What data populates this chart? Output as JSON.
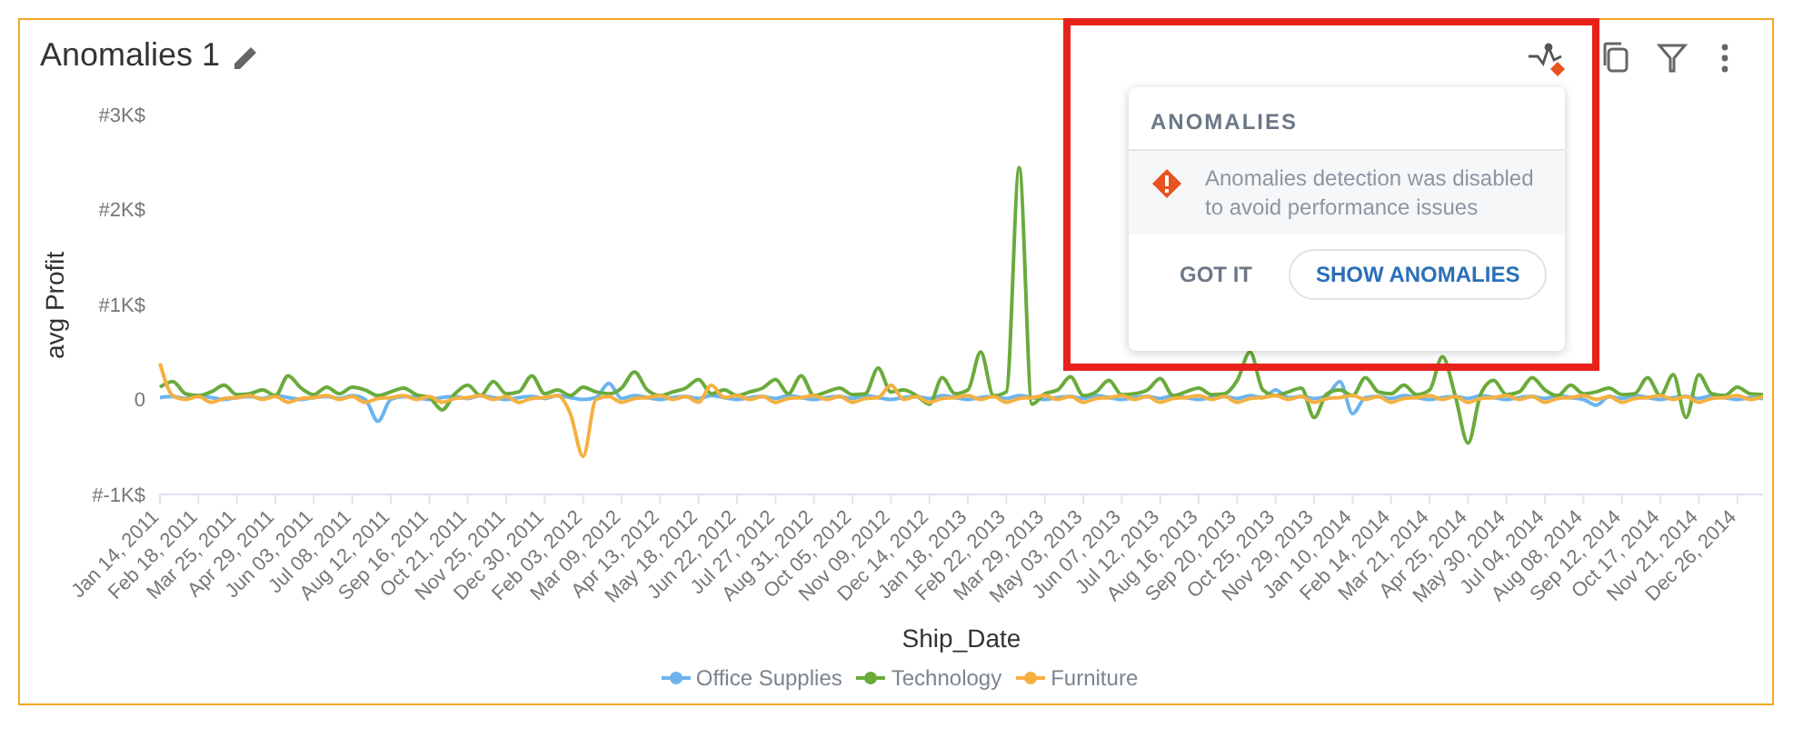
{
  "chart_data": {
    "type": "line",
    "title": "Anomalies 1",
    "xlabel": "Ship_Date",
    "ylabel": "avg Profit",
    "categories": [
      "Jan 14, 2011",
      null,
      null,
      "Feb 18, 2011",
      null,
      null,
      "Mar 25, 2011",
      null,
      null,
      "Apr 29, 2011",
      null,
      null,
      "Jun 03, 2011",
      null,
      null,
      "Jul 08, 2011",
      null,
      null,
      "Aug 12, 2011",
      null,
      null,
      "Sep 16, 2011",
      null,
      null,
      "Oct 21, 2011",
      null,
      null,
      "Nov 25, 2011",
      null,
      null,
      "Dec 30, 2011",
      null,
      null,
      "Feb 03, 2012",
      null,
      null,
      "Mar 09, 2012",
      null,
      null,
      "Apr 13, 2012",
      null,
      null,
      "May 18, 2012",
      null,
      null,
      "Jun 22, 2012",
      null,
      null,
      "Jul 27, 2012",
      null,
      null,
      "Aug 31, 2012",
      null,
      null,
      "Oct 05, 2012",
      null,
      null,
      "Nov 09, 2012",
      null,
      null,
      "Dec 14, 2012",
      null,
      null,
      "Jan 18, 2013",
      null,
      null,
      "Feb 22, 2013",
      null,
      null,
      "Mar 29, 2013",
      null,
      null,
      "May 03, 2013",
      null,
      null,
      "Jun 07, 2013",
      null,
      null,
      "Jul 12, 2013",
      null,
      null,
      "Aug 16, 2013",
      null,
      null,
      "Sep 20, 2013",
      null,
      null,
      "Oct 25, 2013",
      null,
      null,
      "Nov 29, 2013",
      null,
      null,
      "Jan 10, 2014",
      null,
      null,
      "Feb 14, 2014",
      null,
      null,
      "Mar 21, 2014",
      null,
      null,
      "Apr 25, 2014",
      null,
      null,
      "May 30, 2014",
      null,
      null,
      "Jul 04, 2014",
      null,
      null,
      "Aug 08, 2014",
      null,
      null,
      "Sep 12, 2014",
      null,
      null,
      "Oct 17, 2014",
      null,
      null,
      "Nov 21, 2014",
      null,
      null,
      "Dec 26, 2014",
      null,
      null
    ],
    "series": [
      {
        "name": "Office Supplies",
        "color": "#6cb4ee",
        "values": [
          20,
          30,
          10,
          40,
          20,
          0,
          20,
          30,
          10,
          40,
          20,
          0,
          20,
          30,
          10,
          40,
          0,
          -230,
          0,
          30,
          20,
          0,
          20,
          30,
          10,
          40,
          20,
          0,
          20,
          30,
          10,
          40,
          20,
          0,
          20,
          170,
          10,
          40,
          20,
          0,
          20,
          30,
          10,
          40,
          20,
          0,
          20,
          30,
          10,
          40,
          20,
          0,
          20,
          30,
          10,
          40,
          20,
          0,
          20,
          30,
          10,
          40,
          20,
          0,
          20,
          30,
          10,
          40,
          20,
          0,
          20,
          30,
          10,
          40,
          20,
          0,
          20,
          30,
          10,
          40,
          20,
          0,
          20,
          30,
          10,
          40,
          20,
          100,
          20,
          30,
          10,
          40,
          190,
          -150,
          20,
          30,
          10,
          40,
          20,
          0,
          20,
          30,
          10,
          40,
          20,
          0,
          20,
          30,
          10,
          40,
          20,
          0,
          -60,
          30,
          10,
          40,
          20,
          0,
          20,
          30,
          10,
          40,
          20,
          0,
          20,
          10
        ]
      },
      {
        "name": "Technology",
        "color": "#6aab3c",
        "values": [
          130,
          190,
          60,
          40,
          80,
          150,
          50,
          60,
          100,
          40,
          250,
          120,
          50,
          130,
          60,
          130,
          100,
          40,
          80,
          120,
          50,
          20,
          -110,
          60,
          150,
          40,
          190,
          60,
          80,
          250,
          60,
          100,
          40,
          130,
          80,
          60,
          120,
          290,
          100,
          40,
          80,
          120,
          210,
          60,
          100,
          40,
          80,
          120,
          210,
          60,
          250,
          40,
          80,
          120,
          50,
          60,
          330,
          80,
          100,
          40,
          -50,
          230,
          60,
          100,
          500,
          40,
          80,
          2440,
          -50,
          60,
          100,
          240,
          40,
          80,
          200,
          50,
          60,
          100,
          220,
          40,
          80,
          120,
          50,
          60,
          200,
          500,
          100,
          40,
          80,
          120,
          -190,
          60,
          100,
          40,
          230,
          80,
          60,
          150,
          50,
          100,
          450,
          40,
          -460,
          60,
          200,
          50,
          80,
          230,
          100,
          40,
          150,
          60,
          80,
          120,
          50,
          60,
          230,
          40,
          260,
          -190,
          260,
          60,
          40,
          130,
          60,
          50
        ]
      },
      {
        "name": "Furniture",
        "color": "#f5b041",
        "values": [
          380,
          40,
          0,
          30,
          -30,
          10,
          20,
          40,
          0,
          30,
          -30,
          10,
          20,
          40,
          0,
          30,
          -30,
          10,
          20,
          40,
          0,
          30,
          -30,
          10,
          20,
          40,
          0,
          30,
          -30,
          10,
          20,
          40,
          -150,
          -600,
          0,
          30,
          -30,
          10,
          20,
          40,
          0,
          30,
          -30,
          150,
          20,
          40,
          0,
          30,
          -30,
          10,
          20,
          40,
          0,
          30,
          -30,
          10,
          20,
          150,
          0,
          30,
          -30,
          10,
          20,
          40,
          0,
          30,
          -30,
          10,
          20,
          40,
          0,
          30,
          -30,
          10,
          20,
          40,
          0,
          30,
          -30,
          10,
          20,
          40,
          0,
          30,
          -30,
          10,
          20,
          40,
          0,
          30,
          -30,
          10,
          20,
          40,
          0,
          30,
          -30,
          10,
          20,
          40,
          0,
          30,
          -30,
          10,
          20,
          40,
          0,
          30,
          -30,
          10,
          20,
          40,
          0,
          30,
          -30,
          10,
          20,
          40,
          0,
          30,
          -30,
          10,
          20,
          40,
          0,
          30
        ]
      }
    ],
    "ylim": [
      -1000,
      3000
    ],
    "yticks": [
      {
        "value": -1000,
        "label": "#-1K$"
      },
      0,
      {
        "value": 1000,
        "label": "#1K$"
      },
      {
        "value": 2000,
        "label": "#2K$"
      },
      {
        "value": 3000,
        "label": "#3K$"
      }
    ],
    "legend": "bottom",
    "annotations": [
      "ANOMALIES",
      "Anomalies detection was disabled to avoid performance issues",
      "GOT IT",
      "SHOW ANOMALIES"
    ]
  }
}
